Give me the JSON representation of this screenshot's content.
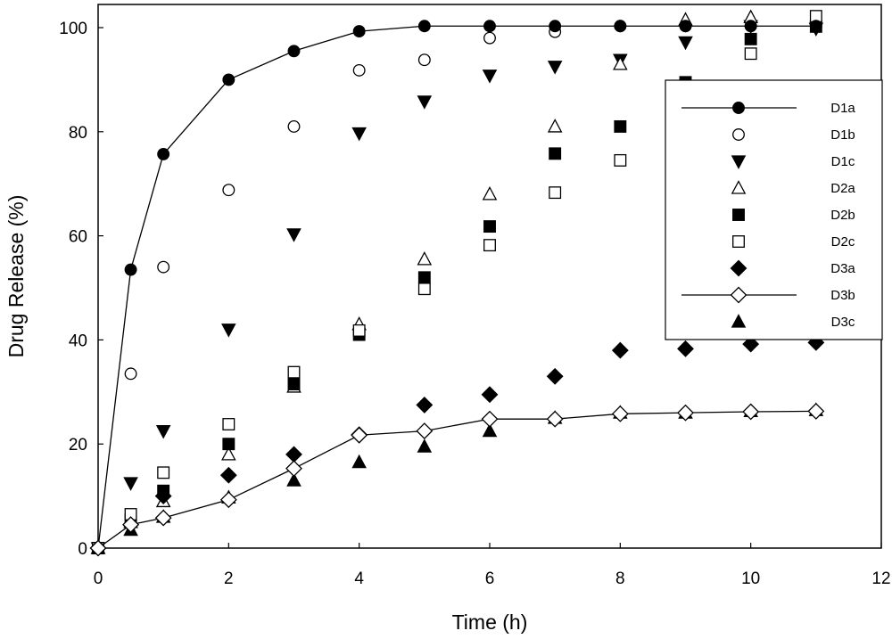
{
  "chart_data": {
    "type": "scatter",
    "title": "",
    "xlabel": "Time (h)",
    "ylabel": "Drug Release (%)",
    "xlim": [
      0,
      12
    ],
    "ylim": [
      0,
      105
    ],
    "x_ticks": [
      0,
      2,
      4,
      6,
      8,
      10,
      12
    ],
    "y_ticks": [
      0,
      20,
      40,
      60,
      80,
      100
    ],
    "grid": false,
    "legend_position": "right",
    "series": [
      {
        "name": "D1a",
        "marker": "circle",
        "filled": true,
        "line": true,
        "x": [
          0,
          0.5,
          1,
          2,
          3,
          4,
          5,
          6,
          7,
          8,
          9,
          10,
          11
        ],
        "y": [
          0,
          53.5,
          75.7,
          90,
          95.5,
          99.3,
          100.3,
          100.3,
          100.3,
          100.3,
          100.3,
          100.3,
          100.3
        ]
      },
      {
        "name": "D1b",
        "marker": "circle",
        "filled": false,
        "line": false,
        "x": [
          0,
          0.5,
          1,
          2,
          3,
          4,
          5,
          6,
          7,
          8,
          9,
          10
        ],
        "y": [
          0,
          33.5,
          54,
          68.8,
          81,
          91.8,
          93.8,
          98,
          99.2,
          100.3,
          100.3,
          100.3
        ]
      },
      {
        "name": "D1c",
        "marker": "triangle-down",
        "filled": true,
        "line": false,
        "x": [
          0,
          0.5,
          1,
          2,
          3,
          4,
          5,
          6,
          7,
          8,
          9,
          10,
          11
        ],
        "y": [
          0,
          12.5,
          22.5,
          42,
          60.3,
          79.7,
          85.8,
          90.8,
          92.5,
          93.8,
          97.2,
          100.3,
          99.8
        ]
      },
      {
        "name": "D2a",
        "marker": "triangle-up",
        "filled": false,
        "line": false,
        "x": [
          0,
          0.5,
          1,
          2,
          3,
          4,
          5,
          6,
          7,
          8,
          9,
          10
        ],
        "y": [
          0,
          5,
          9,
          18,
          31,
          43,
          55.5,
          68,
          81,
          93,
          101.5,
          102
        ]
      },
      {
        "name": "D2b",
        "marker": "square",
        "filled": true,
        "line": false,
        "x": [
          0,
          0.5,
          1,
          2,
          3,
          4,
          5,
          6,
          7,
          8,
          9,
          10,
          11
        ],
        "y": [
          0,
          5.5,
          11,
          20,
          31.5,
          41,
          52,
          61.8,
          75.8,
          81,
          89.5,
          97.8,
          100.2
        ]
      },
      {
        "name": "D2c",
        "marker": "square",
        "filled": false,
        "line": false,
        "x": [
          0,
          0.5,
          1,
          2,
          3,
          4,
          5,
          6,
          7,
          8,
          10,
          11
        ],
        "y": [
          0,
          6.5,
          14.5,
          23.8,
          33.8,
          41.8,
          49.8,
          58.2,
          68.3,
          74.5,
          95,
          102.2
        ]
      },
      {
        "name": "D3a",
        "marker": "diamond",
        "filled": true,
        "line": false,
        "x": [
          0,
          0.5,
          1,
          2,
          3,
          4,
          5,
          6,
          7,
          8,
          9,
          10,
          11
        ],
        "y": [
          0,
          4.5,
          10,
          14,
          18,
          21.8,
          27.5,
          29.5,
          33,
          38,
          38.3,
          39.2,
          39.5
        ]
      },
      {
        "name": "D3b",
        "marker": "diamond",
        "filled": false,
        "line": true,
        "x": [
          0,
          0.5,
          1,
          2,
          3,
          4,
          5,
          6,
          7,
          8,
          9,
          10,
          11
        ],
        "y": [
          0,
          4.5,
          5.8,
          9.3,
          15.3,
          21.7,
          22.5,
          24.8,
          24.8,
          25.8,
          26,
          26.2,
          26.3
        ]
      },
      {
        "name": "D3c",
        "marker": "triangle-up",
        "filled": true,
        "line": false,
        "x": [
          0,
          0.5,
          1,
          2,
          3,
          4,
          5,
          6,
          7,
          8,
          9,
          10,
          11
        ],
        "y": [
          0,
          3.5,
          6,
          9.7,
          13,
          16.5,
          19.5,
          22.5,
          25,
          26,
          26,
          26.3,
          26.5
        ]
      }
    ]
  }
}
